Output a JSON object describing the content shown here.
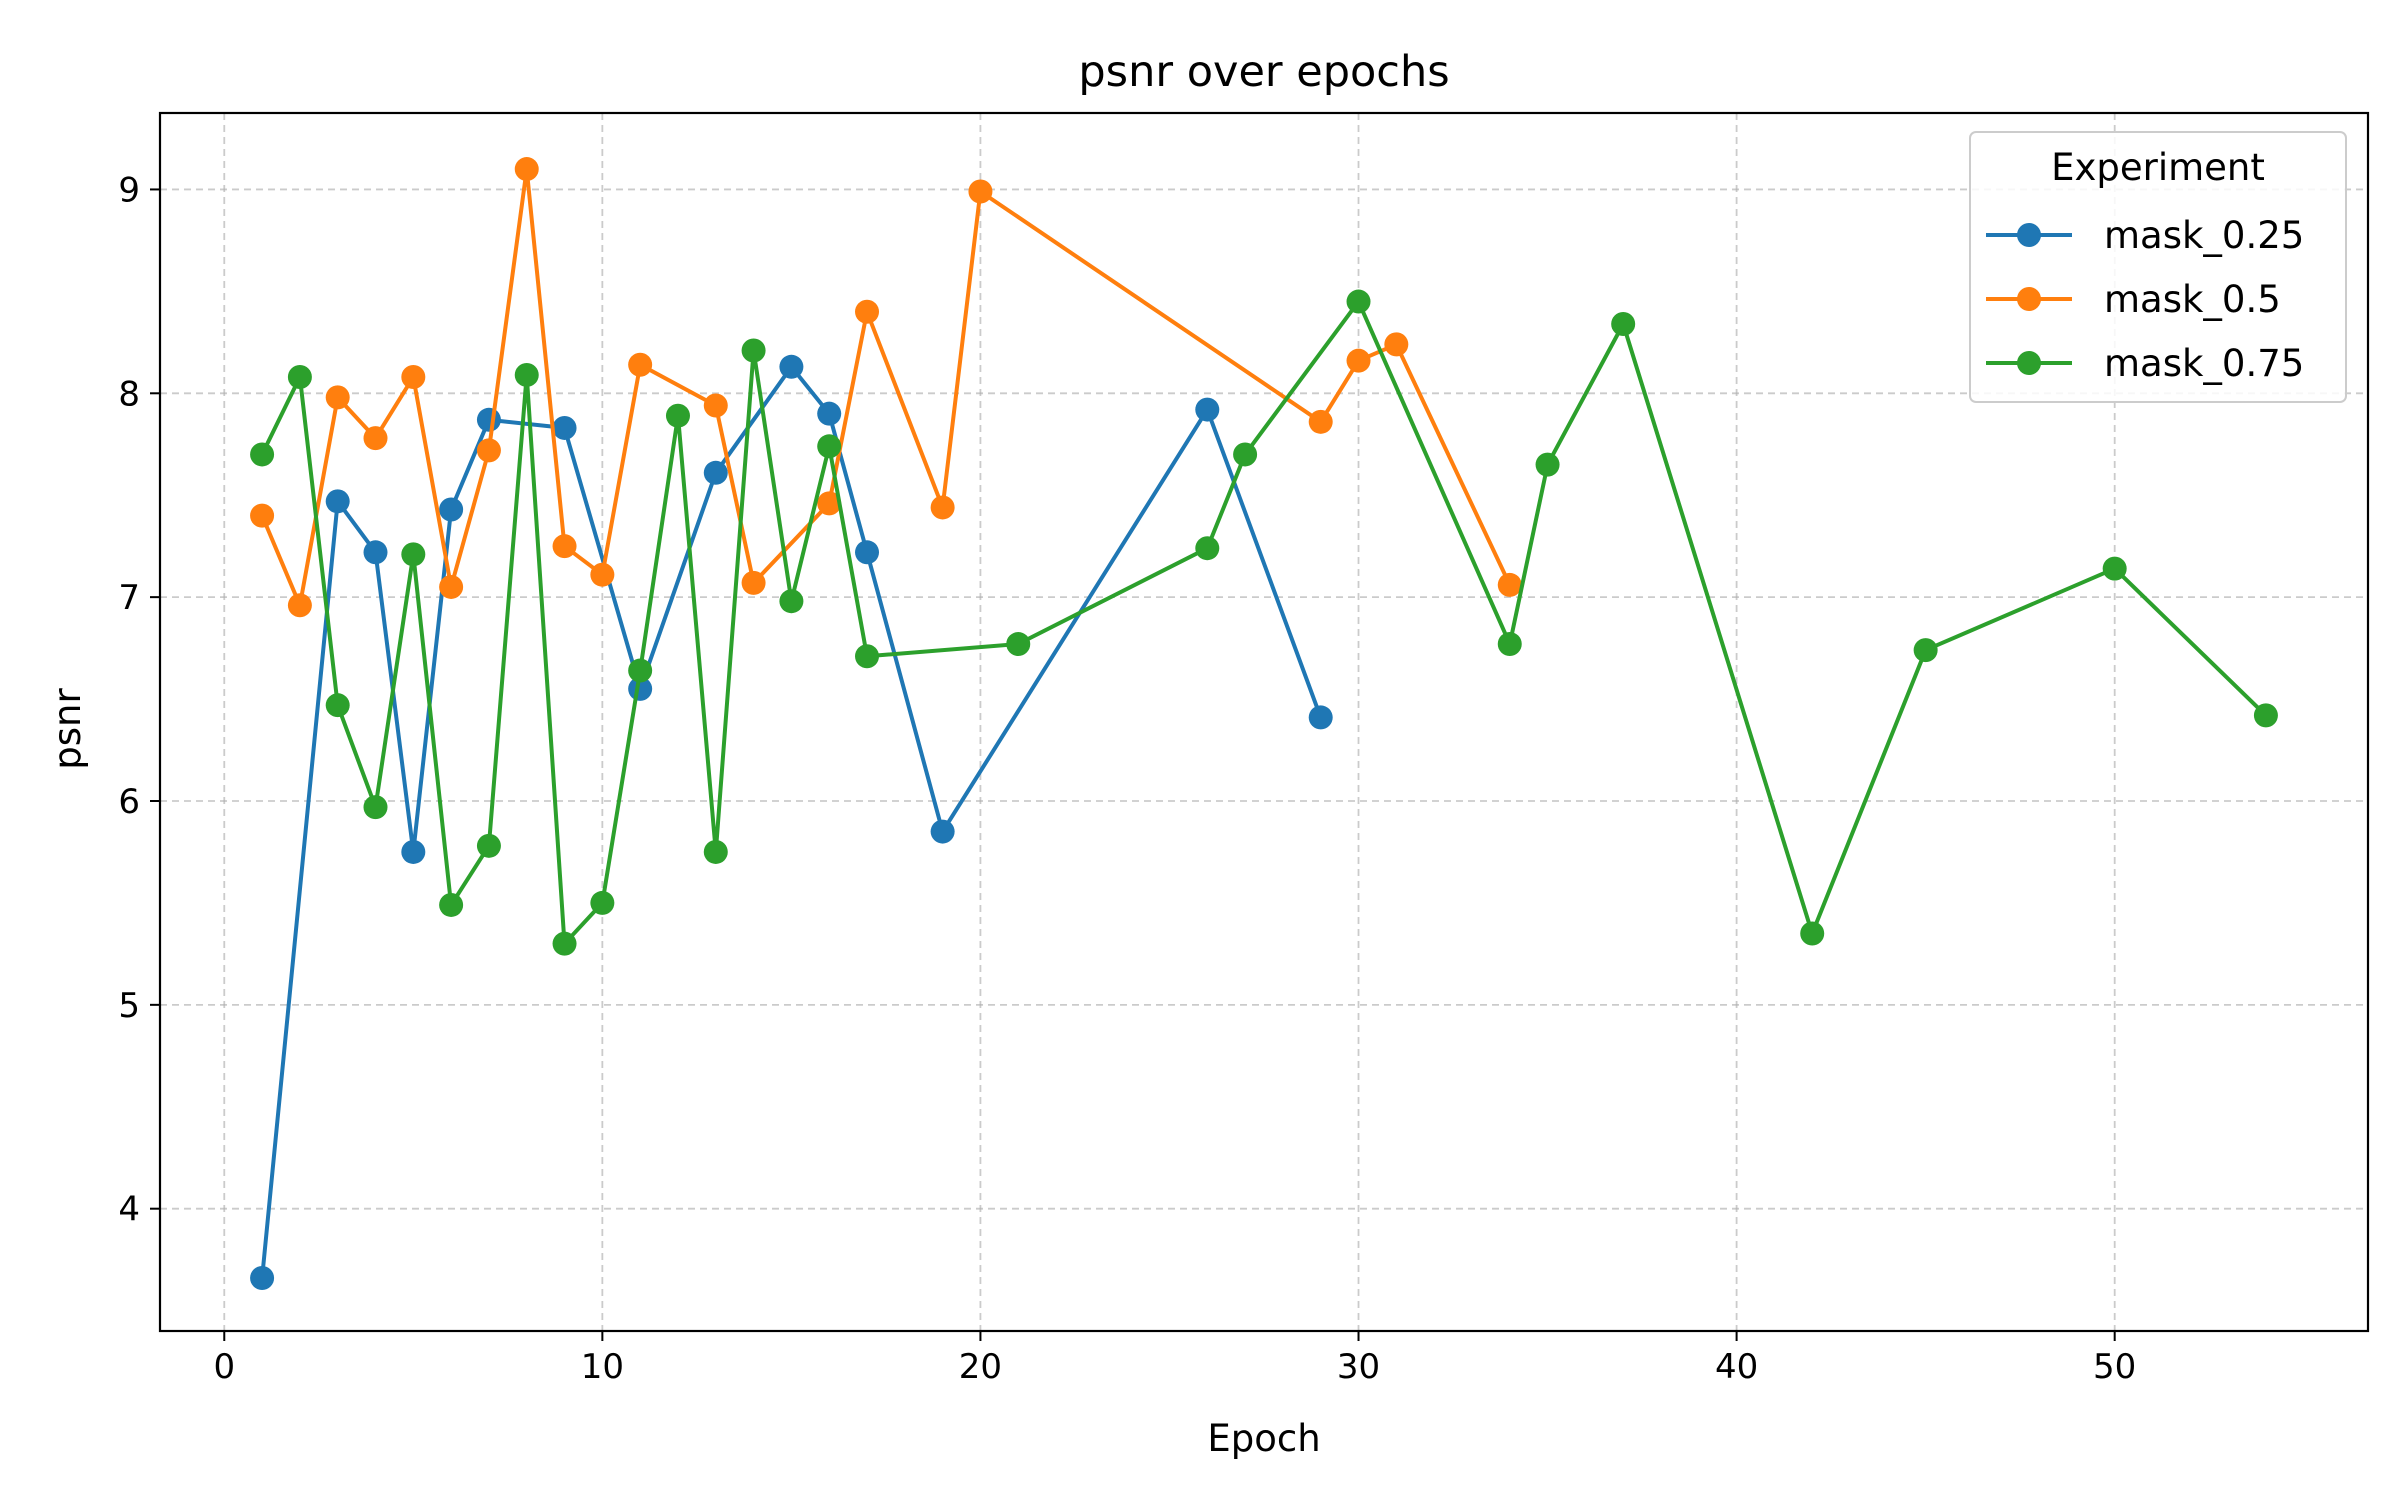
{
  "chart_data": {
    "type": "line",
    "title": "psnr over epochs",
    "xlabel": "Epoch",
    "ylabel": "psnr",
    "xlim": [
      -1.7,
      56.7
    ],
    "ylim": [
      3.4,
      9.375
    ],
    "xticks": [
      0,
      10,
      20,
      30,
      40,
      50
    ],
    "yticks": [
      4,
      5,
      6,
      7,
      8,
      9
    ],
    "grid": true,
    "legend": {
      "title": "Experiment",
      "placement": "top-right"
    },
    "series": [
      {
        "name": "mask_0.25",
        "color": "#1f77b4",
        "x": [
          1,
          3,
          4,
          5,
          6,
          7,
          9,
          11,
          13,
          15,
          16,
          17,
          19,
          26,
          29
        ],
        "y": [
          3.66,
          7.47,
          7.22,
          5.75,
          7.43,
          7.87,
          7.83,
          6.55,
          7.61,
          8.13,
          7.9,
          7.22,
          5.85,
          7.92,
          6.41
        ]
      },
      {
        "name": "mask_0.5",
        "color": "#ff7f0e",
        "x": [
          1,
          2,
          3,
          4,
          5,
          6,
          7,
          8,
          9,
          10,
          11,
          13,
          14,
          16,
          17,
          19,
          20,
          29,
          30,
          31,
          34
        ],
        "y": [
          7.4,
          6.96,
          7.98,
          7.78,
          8.08,
          7.05,
          7.72,
          9.1,
          7.25,
          7.11,
          8.14,
          7.94,
          7.07,
          7.46,
          8.4,
          7.44,
          8.99,
          7.86,
          8.16,
          8.24,
          7.06
        ]
      },
      {
        "name": "mask_0.75",
        "color": "#2ca02c",
        "x": [
          1,
          2,
          3,
          4,
          5,
          6,
          7,
          8,
          9,
          10,
          11,
          12,
          13,
          14,
          15,
          16,
          17,
          21,
          26,
          27,
          30,
          34,
          35,
          37,
          42,
          45,
          50,
          54
        ],
        "y": [
          7.7,
          8.08,
          6.47,
          5.97,
          7.21,
          5.49,
          5.78,
          8.09,
          5.3,
          5.5,
          6.64,
          7.89,
          5.75,
          8.21,
          6.98,
          7.74,
          6.71,
          6.77,
          7.24,
          7.7,
          8.45,
          6.77,
          7.65,
          8.34,
          5.35,
          6.74,
          7.14,
          6.42
        ]
      }
    ]
  }
}
